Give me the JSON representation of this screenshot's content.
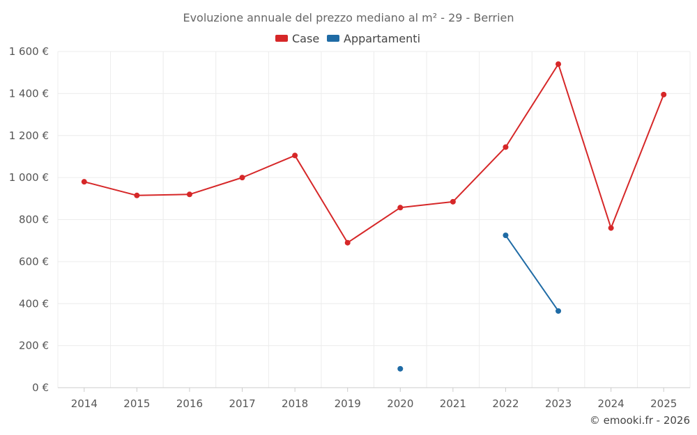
{
  "chart_data": {
    "type": "line",
    "title": "Evoluzione annuale del prezzo mediano al m² - 29 - Berrien",
    "categories": [
      "2014",
      "2015",
      "2016",
      "2017",
      "2018",
      "2019",
      "2020",
      "2021",
      "2022",
      "2023",
      "2024",
      "2025"
    ],
    "y_tick_labels": [
      "0 €",
      "200 €",
      "400 €",
      "600 €",
      "800 €",
      "1 000 €",
      "1 200 €",
      "1 400 €",
      "1 600 €"
    ],
    "y_ticks": [
      0,
      200,
      400,
      600,
      800,
      1000,
      1200,
      1400,
      1600
    ],
    "ylim": [
      0,
      1600
    ],
    "grid": true,
    "legend_position": "top-center",
    "series": [
      {
        "name": "Case",
        "color": "#d62728",
        "values": [
          980,
          915,
          920,
          1000,
          1105,
          690,
          857,
          885,
          1145,
          1540,
          760,
          1395
        ]
      },
      {
        "name": "Appartamenti",
        "color": "#1f6ba5",
        "values": [
          null,
          null,
          null,
          null,
          null,
          null,
          90,
          null,
          725,
          365,
          null,
          null
        ]
      }
    ],
    "credit": "© emooki.fr - 2026"
  }
}
